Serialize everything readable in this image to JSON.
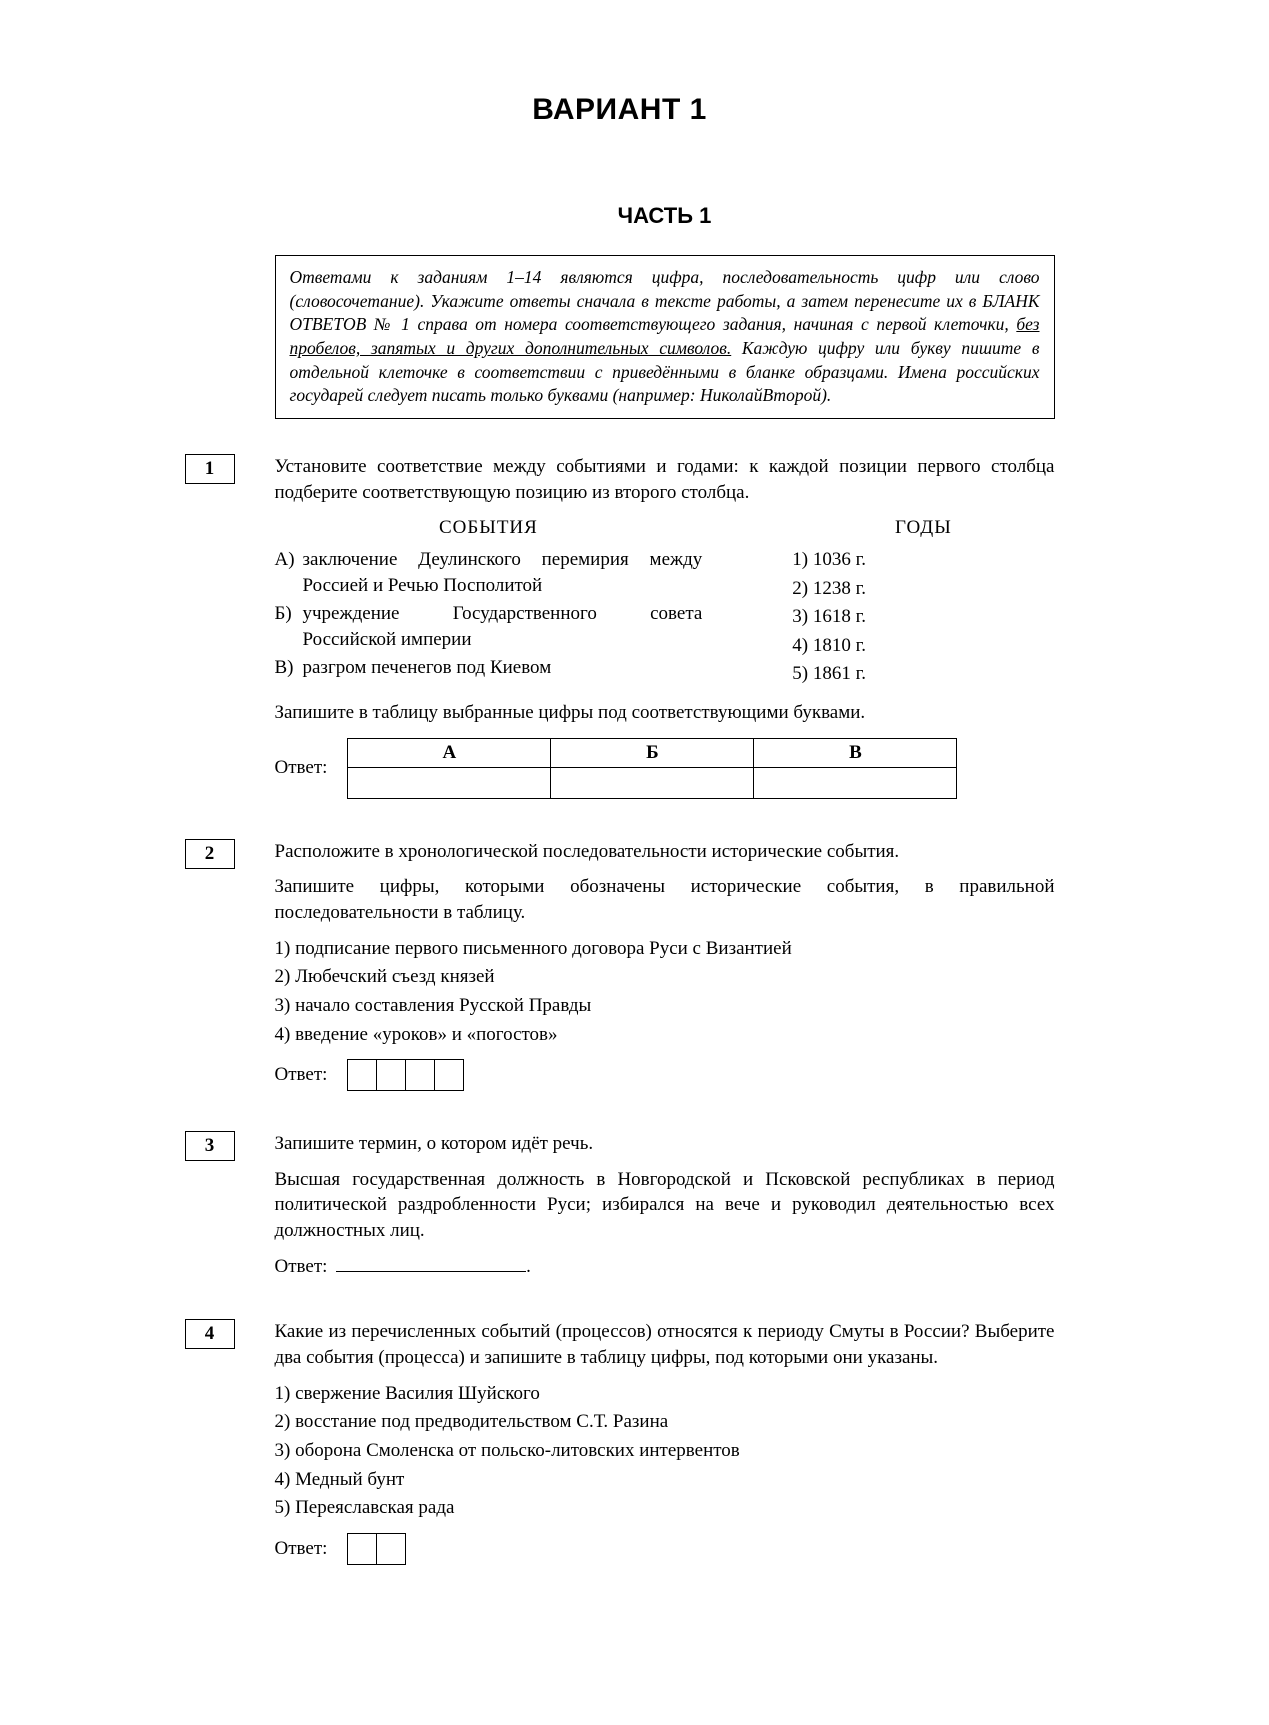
{
  "heading_variant": "ВАРИАНТ 1",
  "heading_part": "ЧАСТЬ 1",
  "instruction": {
    "p1a": "Ответами к заданиям 1–14 являются цифра, последовательность цифр или слово (словосочетание). Укажите ответы сначала в тексте работы, а затем перенесите их в БЛАНК ОТВЕТОВ № 1 справа от номера соответствующего задания, начиная с первой клеточки, ",
    "p1u": "без пробелов, запятых и других дополнительных символов.",
    "p1b": " Каждую цифру или букву пишите в отдельной клеточке в соответствии с приведёнными в бланке образцами. Имена российских государей следует писать только буквами (например: НиколайВторой)."
  },
  "task1": {
    "num": "1",
    "prompt": "Установите соответствие между событиями и годами: к каждой позиции первого столбца подберите соответствующую позицию из второго столбца.",
    "events_head": "СОБЫТИЯ",
    "years_head": "ГОДЫ",
    "events": [
      {
        "l": "А)",
        "t": "заключение Деулинского перемирия между Россией и Речью Посполитой"
      },
      {
        "l": "Б)",
        "t": "учреждение Государственного совета Российской империи"
      },
      {
        "l": "В)",
        "t": "разгром печенегов под Киевом"
      }
    ],
    "years": [
      "1) 1036 г.",
      "2) 1238 г.",
      "3) 1618 г.",
      "4) 1810 г.",
      "5) 1861 г."
    ],
    "post": "Запишите в таблицу выбранные цифры под соответствующими буквами.",
    "answer_label": "Ответ:",
    "cols": [
      "А",
      "Б",
      "В"
    ]
  },
  "task2": {
    "num": "2",
    "p1": "Расположите в хронологической последовательности исторические события.",
    "p2": "Запишите цифры, которыми обозначены исторические события, в правильной последовательности в таблицу.",
    "opts": [
      "1) подписание первого письменного договора Руси с Византией",
      "2) Любечский съезд князей",
      "3) начало составления Русской Правды",
      "4) введение «уроков» и «погостов»"
    ],
    "answer_label": "Ответ:"
  },
  "task3": {
    "num": "3",
    "p1": "Запишите термин, о котором идёт речь.",
    "p2": "Высшая государственная должность в Новгородской и Псковской республиках в период политической раздробленности Руси; избирался на вече и руководил деятельностью всех должностных лиц.",
    "answer_label": "Ответ:",
    "dot": "."
  },
  "task4": {
    "num": "4",
    "p1": "Какие из перечисленных событий (процессов) относятся к периоду Смуты в России? Выберите два события (процесса) и запишите в таблицу цифры, под которыми они указаны.",
    "opts": [
      "1) свержение Василия Шуйского",
      "2) восстание под предводительством С.Т. Разина",
      "3) оборона Смоленска от польско-литовских интервентов",
      "4) Медный бунт",
      "5) Переяславская рада"
    ],
    "answer_label": "Ответ:"
  }
}
